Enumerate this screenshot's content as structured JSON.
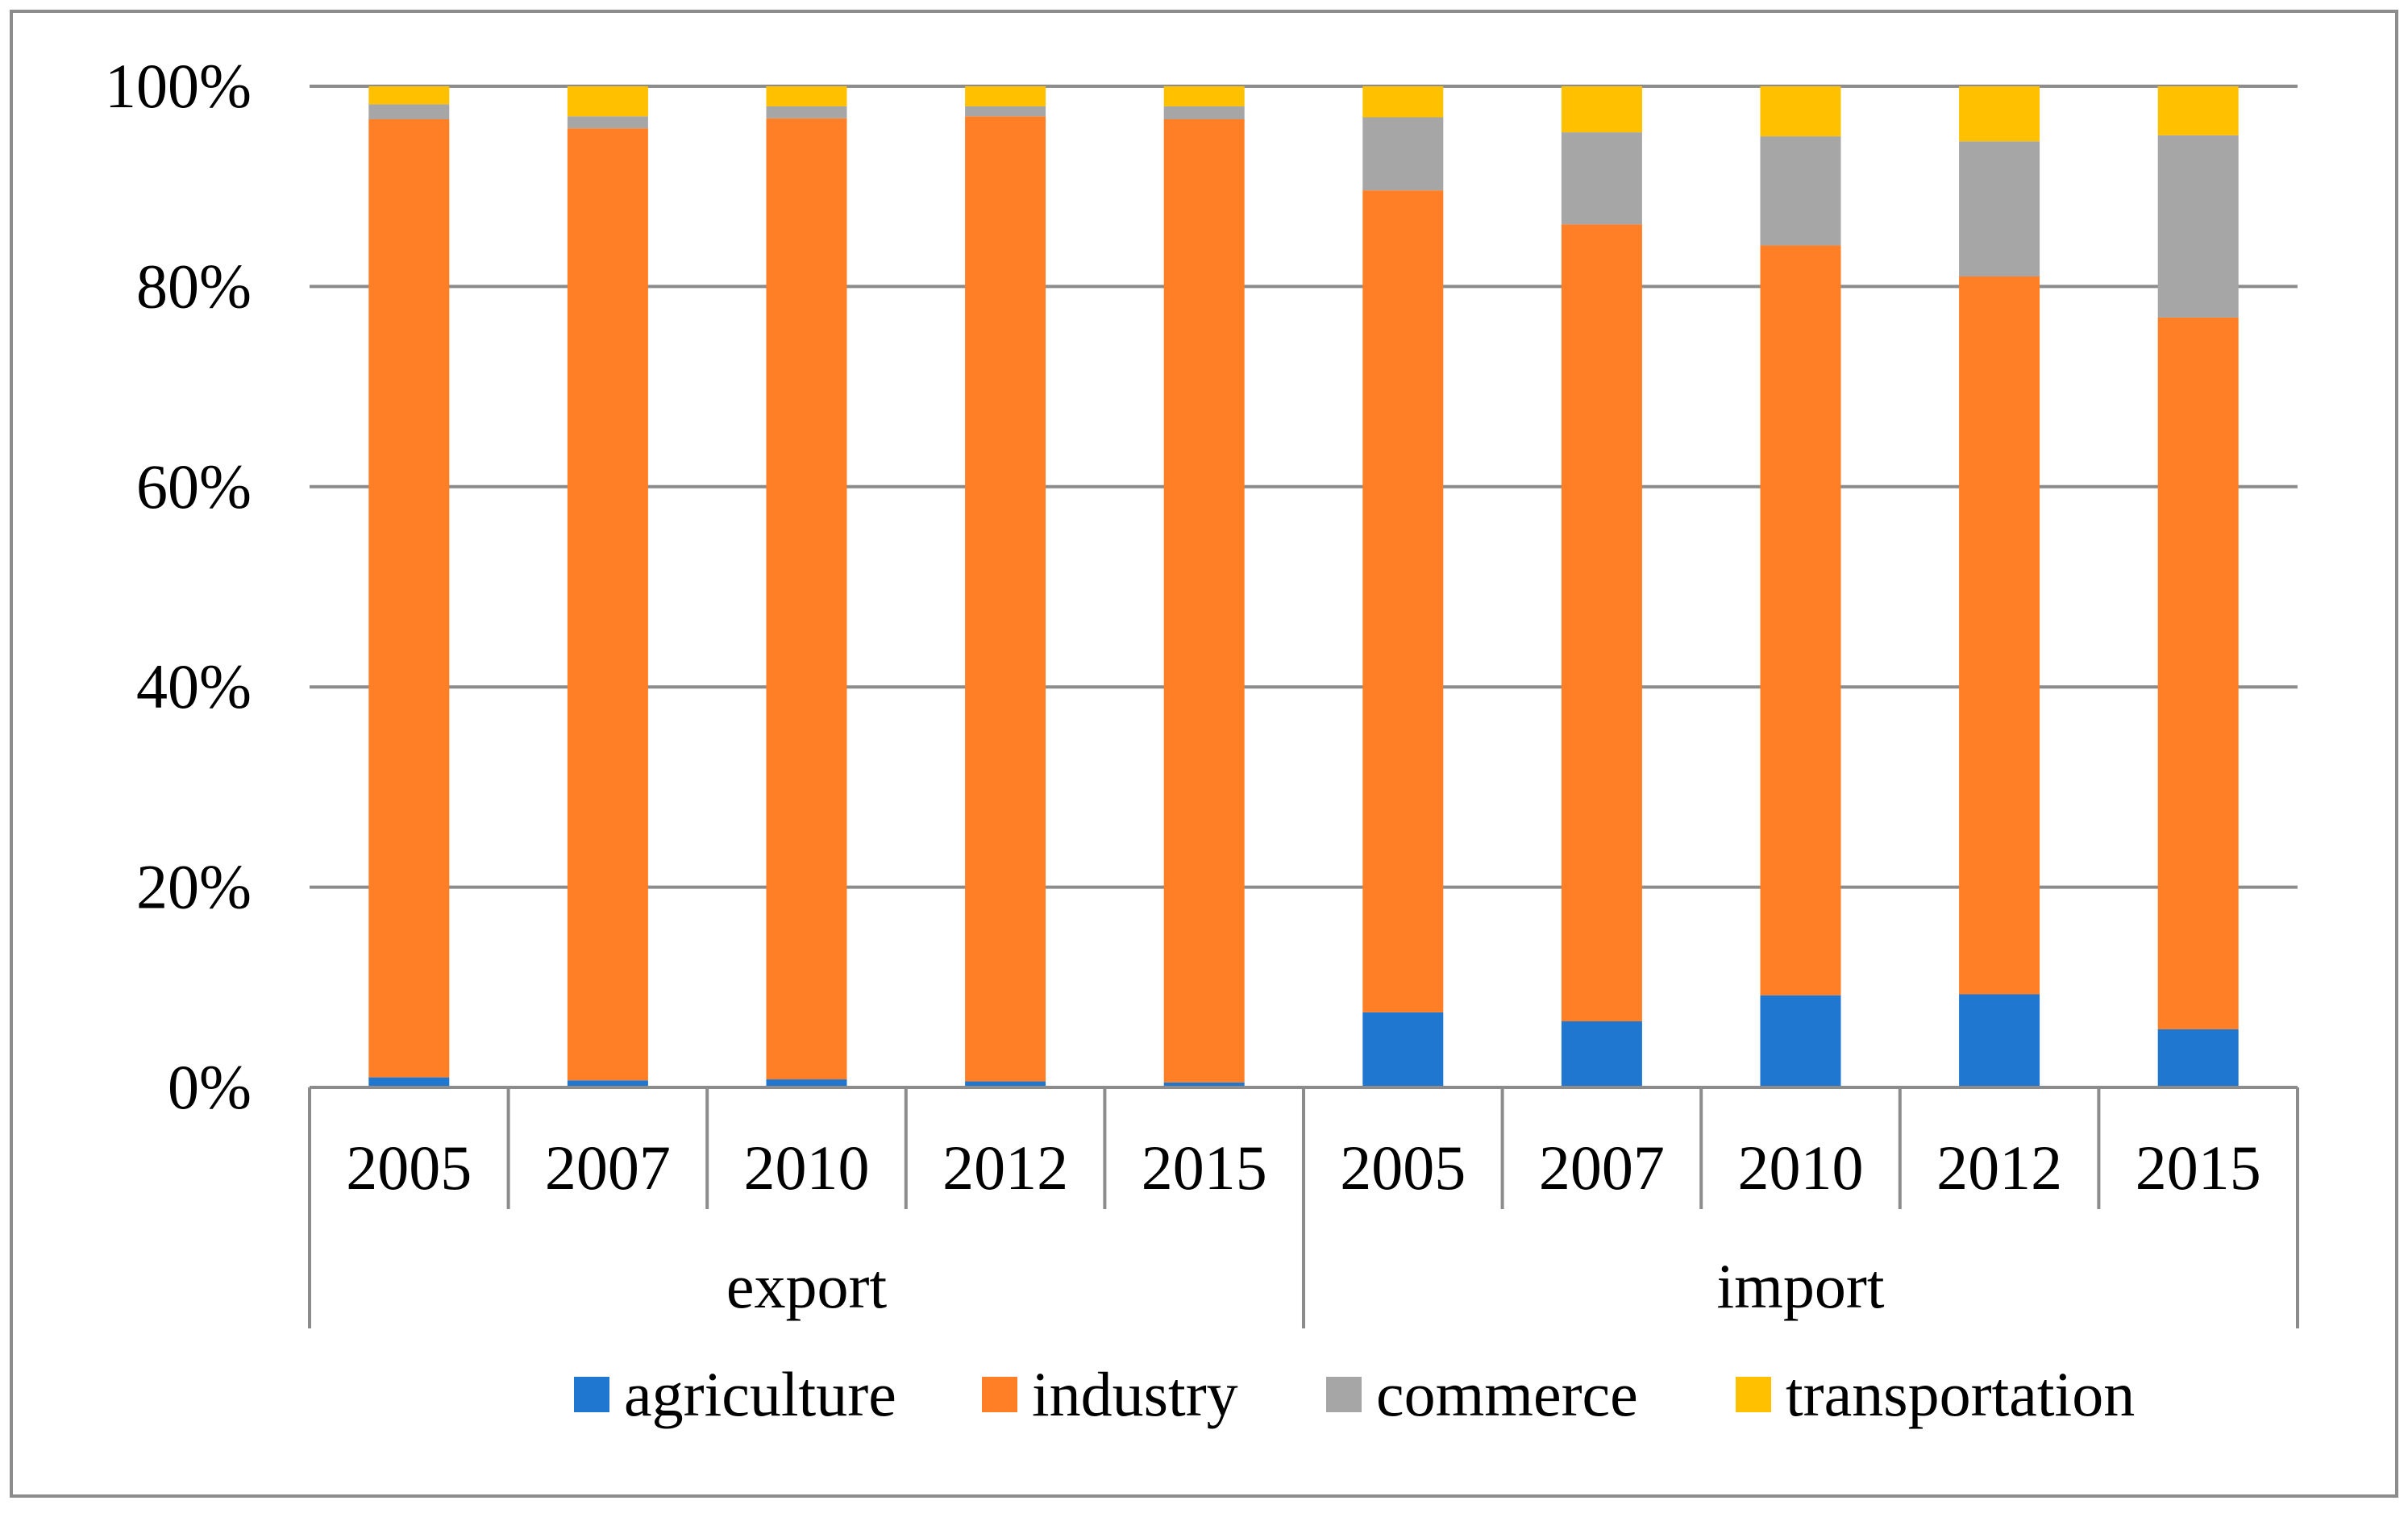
{
  "chart_data": {
    "type": "bar",
    "stacked": "percent",
    "title": "",
    "xlabel": "",
    "ylabel": "",
    "ylim": [
      0,
      100
    ],
    "yticks": [
      "0%",
      "20%",
      "40%",
      "60%",
      "80%",
      "100%"
    ],
    "ytick_values": [
      0,
      20,
      40,
      60,
      80,
      100
    ],
    "grid": true,
    "legend_position": "bottom",
    "groups": [
      {
        "name": "export",
        "categories": [
          "2005",
          "2007",
          "2010",
          "2012",
          "2015"
        ]
      },
      {
        "name": "import",
        "categories": [
          "2005",
          "2007",
          "2010",
          "2012",
          "2015"
        ]
      }
    ],
    "series": [
      {
        "name": "agriculture",
        "color": "#1f77d0",
        "values": [
          1.0,
          0.7,
          0.8,
          0.6,
          0.5,
          7.5,
          6.6,
          9.2,
          9.3,
          5.8
        ]
      },
      {
        "name": "industry",
        "color": "#ff7f27",
        "values": [
          95.7,
          95.1,
          96.0,
          96.4,
          96.2,
          82.1,
          79.6,
          74.9,
          71.7,
          71.1
        ]
      },
      {
        "name": "commerce",
        "color": "#a6a6a6",
        "values": [
          1.5,
          1.2,
          1.2,
          1.0,
          1.3,
          7.3,
          9.2,
          10.9,
          13.5,
          18.2
        ]
      },
      {
        "name": "transportation",
        "color": "#ffc000",
        "values": [
          1.8,
          3.0,
          2.0,
          2.0,
          2.0,
          3.1,
          4.6,
          5.0,
          5.5,
          4.9
        ]
      }
    ]
  }
}
